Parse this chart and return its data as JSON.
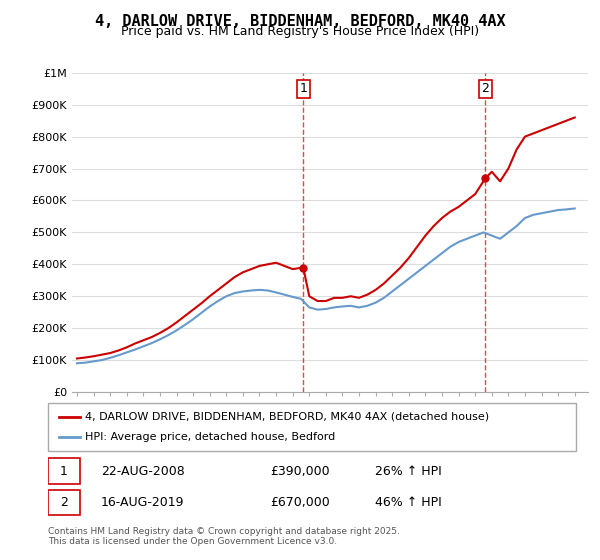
{
  "title": "4, DARLOW DRIVE, BIDDENHAM, BEDFORD, MK40 4AX",
  "subtitle": "Price paid vs. HM Land Registry's House Price Index (HPI)",
  "xlabel": "",
  "ylabel": "",
  "ylim": [
    0,
    1000000
  ],
  "xlim_start": 1995.0,
  "xlim_end": 2025.8,
  "yticks": [
    0,
    100000,
    200000,
    300000,
    400000,
    500000,
    600000,
    700000,
    800000,
    900000,
    1000000
  ],
  "ytick_labels": [
    "£0",
    "£100K",
    "£200K",
    "£300K",
    "£400K",
    "£500K",
    "£600K",
    "£700K",
    "£800K",
    "£900K",
    "£1M"
  ],
  "sale1_year": 2008.64,
  "sale1_label": "1",
  "sale2_year": 2019.62,
  "sale2_label": "2",
  "sale1_price": 390000,
  "sale2_price": 670000,
  "legend_line1": "4, DARLOW DRIVE, BIDDENHAM, BEDFORD, MK40 4AX (detached house)",
  "legend_line2": "HPI: Average price, detached house, Bedford",
  "annotation1": "1   22-AUG-2008      £390,000        26% ↑ HPI",
  "annotation2": "2   16-AUG-2019      £670,000        46% ↑ HPI",
  "footer": "Contains HM Land Registry data © Crown copyright and database right 2025.\nThis data is licensed under the Open Government Licence v3.0.",
  "line_red_color": "#cc0000",
  "line_blue_color": "#6699cc",
  "background_color": "#ffffff",
  "grid_color": "#dddddd",
  "xticks": [
    1995,
    1996,
    1997,
    1998,
    1999,
    2000,
    2001,
    2002,
    2003,
    2004,
    2005,
    2006,
    2007,
    2008,
    2009,
    2010,
    2011,
    2012,
    2013,
    2014,
    2015,
    2016,
    2017,
    2018,
    2019,
    2020,
    2021,
    2022,
    2023,
    2024,
    2025
  ],
  "red_x": [
    1995.0,
    1995.5,
    1996.0,
    1996.5,
    1997.0,
    1997.5,
    1998.0,
    1998.5,
    1999.0,
    1999.5,
    2000.0,
    2000.5,
    2001.0,
    2001.5,
    2002.0,
    2002.5,
    2003.0,
    2003.5,
    2004.0,
    2004.5,
    2005.0,
    2005.5,
    2006.0,
    2006.5,
    2007.0,
    2007.5,
    2008.0,
    2008.64,
    2009.0,
    2009.5,
    2010.0,
    2010.5,
    2011.0,
    2011.5,
    2012.0,
    2012.5,
    2013.0,
    2013.5,
    2014.0,
    2014.5,
    2015.0,
    2015.5,
    2016.0,
    2016.5,
    2017.0,
    2017.5,
    2018.0,
    2018.5,
    2019.0,
    2019.62,
    2020.0,
    2020.5,
    2021.0,
    2021.5,
    2022.0,
    2022.5,
    2023.0,
    2023.5,
    2024.0,
    2024.5,
    2025.0
  ],
  "red_y": [
    105000,
    108000,
    112000,
    117000,
    122000,
    130000,
    140000,
    152000,
    162000,
    172000,
    185000,
    200000,
    218000,
    238000,
    258000,
    278000,
    300000,
    320000,
    340000,
    360000,
    375000,
    385000,
    395000,
    400000,
    405000,
    395000,
    385000,
    390000,
    300000,
    285000,
    285000,
    295000,
    295000,
    300000,
    295000,
    305000,
    320000,
    340000,
    365000,
    390000,
    420000,
    455000,
    490000,
    520000,
    545000,
    565000,
    580000,
    600000,
    620000,
    670000,
    690000,
    660000,
    700000,
    760000,
    800000,
    810000,
    820000,
    830000,
    840000,
    850000,
    860000
  ],
  "blue_x": [
    1995.0,
    1995.5,
    1996.0,
    1996.5,
    1997.0,
    1997.5,
    1998.0,
    1998.5,
    1999.0,
    1999.5,
    2000.0,
    2000.5,
    2001.0,
    2001.5,
    2002.0,
    2002.5,
    2003.0,
    2003.5,
    2004.0,
    2004.5,
    2005.0,
    2005.5,
    2006.0,
    2006.5,
    2007.0,
    2007.5,
    2008.0,
    2008.5,
    2009.0,
    2009.5,
    2010.0,
    2010.5,
    2011.0,
    2011.5,
    2012.0,
    2012.5,
    2013.0,
    2013.5,
    2014.0,
    2014.5,
    2015.0,
    2015.5,
    2016.0,
    2016.5,
    2017.0,
    2017.5,
    2018.0,
    2018.5,
    2019.0,
    2019.5,
    2020.0,
    2020.5,
    2021.0,
    2021.5,
    2022.0,
    2022.5,
    2023.0,
    2023.5,
    2024.0,
    2024.5,
    2025.0
  ],
  "blue_y": [
    90000,
    92000,
    96000,
    100000,
    107000,
    115000,
    124000,
    133000,
    143000,
    153000,
    165000,
    178000,
    193000,
    210000,
    228000,
    248000,
    268000,
    285000,
    300000,
    310000,
    315000,
    318000,
    320000,
    318000,
    312000,
    305000,
    298000,
    292000,
    265000,
    258000,
    260000,
    265000,
    268000,
    270000,
    265000,
    270000,
    280000,
    295000,
    315000,
    335000,
    355000,
    375000,
    395000,
    415000,
    435000,
    455000,
    470000,
    480000,
    490000,
    500000,
    490000,
    480000,
    500000,
    520000,
    545000,
    555000,
    560000,
    565000,
    570000,
    572000,
    575000
  ]
}
